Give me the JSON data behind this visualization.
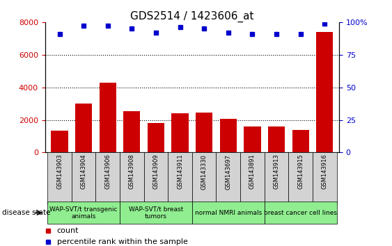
{
  "title": "GDS2514 / 1423606_at",
  "samples": [
    "GSM143903",
    "GSM143904",
    "GSM143906",
    "GSM143908",
    "GSM143909",
    "GSM143911",
    "GSM143330",
    "GSM143697",
    "GSM143891",
    "GSM143913",
    "GSM143915",
    "GSM143916"
  ],
  "counts": [
    1350,
    3000,
    4300,
    2550,
    1800,
    2400,
    2450,
    2050,
    1600,
    1600,
    1400,
    7400
  ],
  "percentiles": [
    91,
    97,
    97,
    95,
    92,
    96,
    95,
    92,
    91,
    91,
    91,
    99
  ],
  "bar_color": "#cc0000",
  "dot_color": "#0000cc",
  "ylim_left": [
    0,
    8000
  ],
  "ylim_right": [
    0,
    100
  ],
  "yticks_left": [
    0,
    2000,
    4000,
    6000,
    8000
  ],
  "yticks_right": [
    0,
    25,
    50,
    75,
    100
  ],
  "groups": [
    {
      "label": "WAP-SVT/t transgenic\nanimals",
      "start": 0,
      "end": 3
    },
    {
      "label": "WAP-SVT/t breast\ntumors",
      "start": 3,
      "end": 6
    },
    {
      "label": "normal NMRI animals",
      "start": 6,
      "end": 9
    },
    {
      "label": "breast cancer cell lines",
      "start": 9,
      "end": 12
    }
  ],
  "group_color": "#90ee90",
  "sample_box_color": "#d3d3d3",
  "disease_state_label": "disease state",
  "legend_count_label": "count",
  "legend_percentile_label": "percentile rank within the sample",
  "tick_label_color_left": "#cc0000",
  "tick_label_color_right": "#0000cc",
  "title_fontsize": 11,
  "tick_fontsize": 8,
  "sample_fontsize": 6,
  "group_fontsize": 6.5,
  "legend_fontsize": 8
}
